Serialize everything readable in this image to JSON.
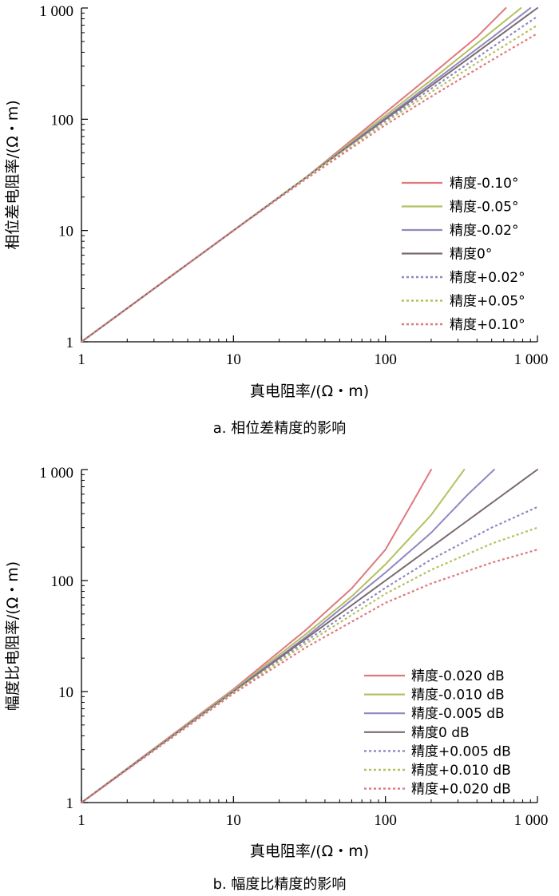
{
  "chart_data": [
    {
      "type": "line",
      "caption": "a. 相位差精度的影响",
      "xlabel": "真电阻率/(Ω・m)",
      "ylabel": "相位差电阻率/(Ω・m)",
      "xscale": "log",
      "yscale": "log",
      "xlim": [
        1,
        1000
      ],
      "ylim": [
        1,
        1000
      ],
      "xticks": [
        "1",
        "10",
        "100",
        "1 000"
      ],
      "yticks": [
        "1",
        "10",
        "100",
        "1 000"
      ],
      "legend_position": "lower-right",
      "series": [
        {
          "name": "精度-0.10°",
          "color": "#e0787e",
          "dashed": false,
          "x": [
            1,
            10,
            30,
            100,
            200,
            400,
            620
          ],
          "y": [
            1,
            10,
            30,
            115,
            250,
            550,
            1000
          ]
        },
        {
          "name": "精度-0.05°",
          "color": "#b5c060",
          "dashed": false,
          "x": [
            1,
            10,
            30,
            100,
            200,
            400,
            780
          ],
          "y": [
            1,
            10,
            30,
            108,
            225,
            480,
            1000
          ]
        },
        {
          "name": "精度-0.02°",
          "color": "#9088c0",
          "dashed": false,
          "x": [
            1,
            10,
            30,
            100,
            200,
            500,
            900
          ],
          "y": [
            1,
            10,
            30,
            103,
            210,
            540,
            1000
          ]
        },
        {
          "name": "精度0°",
          "color": "#7a6a6e",
          "dashed": false,
          "x": [
            1,
            10,
            100,
            1000
          ],
          "y": [
            1,
            10,
            100,
            1000
          ]
        },
        {
          "name": "精度+0.02°",
          "color": "#9088c0",
          "dashed": true,
          "x": [
            1,
            10,
            30,
            100,
            200,
            500,
            1000
          ],
          "y": [
            1,
            10,
            30,
            97,
            188,
            440,
            840
          ]
        },
        {
          "name": "精度+0.05°",
          "color": "#b5c060",
          "dashed": true,
          "x": [
            1,
            10,
            30,
            100,
            200,
            500,
            1000
          ],
          "y": [
            1,
            10,
            30,
            94,
            175,
            390,
            700
          ]
        },
        {
          "name": "精度+0.10°",
          "color": "#e0787e",
          "dashed": true,
          "x": [
            1,
            10,
            30,
            100,
            200,
            500,
            1000
          ],
          "y": [
            1,
            10,
            29,
            89,
            160,
            340,
            590
          ]
        }
      ]
    },
    {
      "type": "line",
      "caption": "b. 幅度比精度的影响",
      "xlabel": "真电阻率/(Ω・m)",
      "ylabel": "幅度比电阻率/(Ω・m)",
      "xscale": "log",
      "yscale": "log",
      "xlim": [
        1,
        1000
      ],
      "ylim": [
        1,
        1000
      ],
      "xticks": [
        "1",
        "10",
        "100",
        "1 000"
      ],
      "yticks": [
        "1",
        "10",
        "100",
        "1 000"
      ],
      "legend_position": "lower-right",
      "series": [
        {
          "name": "精度-0.020 dB",
          "color": "#e0787e",
          "dashed": false,
          "x": [
            1,
            10,
            30,
            60,
            100,
            150,
            200
          ],
          "y": [
            1,
            10.5,
            36,
            85,
            190,
            500,
            1000
          ]
        },
        {
          "name": "精度-0.010 dB",
          "color": "#b5c060",
          "dashed": false,
          "x": [
            1,
            10,
            30,
            60,
            100,
            200,
            330
          ],
          "y": [
            1,
            10.3,
            33,
            72,
            140,
            390,
            1000
          ]
        },
        {
          "name": "精度-0.005 dB",
          "color": "#9088c0",
          "dashed": false,
          "x": [
            1,
            10,
            30,
            100,
            200,
            350,
            520
          ],
          "y": [
            1,
            10.1,
            31,
            118,
            270,
            600,
            1000
          ]
        },
        {
          "name": "精度0 dB",
          "color": "#7a6a6e",
          "dashed": false,
          "x": [
            1,
            10,
            100,
            1000
          ],
          "y": [
            1,
            10,
            100,
            1000
          ]
        },
        {
          "name": "精度+0.005 dB",
          "color": "#9088c0",
          "dashed": true,
          "x": [
            1,
            10,
            30,
            100,
            200,
            500,
            1000
          ],
          "y": [
            1,
            9.9,
            28.5,
            86,
            155,
            300,
            460
          ]
        },
        {
          "name": "精度+0.010 dB",
          "color": "#b5c060",
          "dashed": true,
          "x": [
            1,
            10,
            30,
            100,
            200,
            500,
            1000
          ],
          "y": [
            1,
            9.8,
            27,
            76,
            125,
            215,
            300
          ]
        },
        {
          "name": "精度+0.020 dB",
          "color": "#e0787e",
          "dashed": true,
          "x": [
            1,
            10,
            30,
            100,
            200,
            500,
            1000
          ],
          "y": [
            1,
            9.6,
            25,
            63,
            94,
            145,
            190
          ]
        }
      ]
    }
  ]
}
